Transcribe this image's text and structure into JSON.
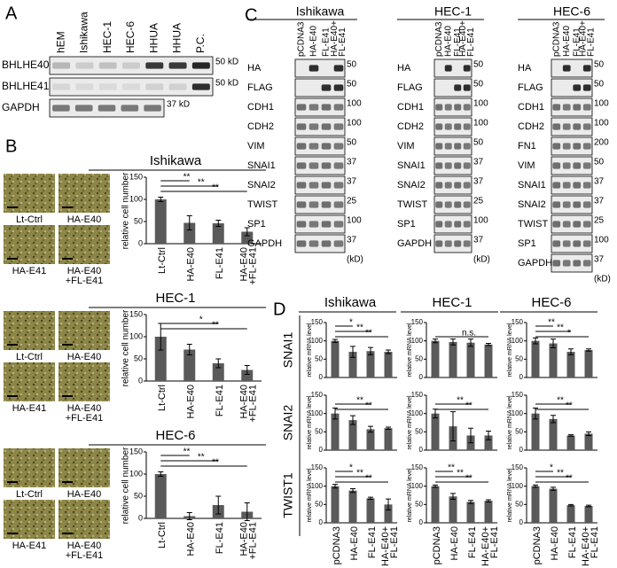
{
  "A": {
    "label": "A",
    "lanes": [
      "hEM",
      "Ishikawa",
      "HEC-1",
      "HEC-6",
      "HHUA",
      "HHUA",
      "P.C."
    ],
    "rows": [
      {
        "name": "BHLHE40",
        "marker": "50 kD"
      },
      {
        "name": "BHLHE41",
        "marker": "50 kD"
      },
      {
        "name": "GAPDH",
        "marker": "37 kD"
      }
    ]
  },
  "B": {
    "label": "B",
    "ylabel": "relative cell number",
    "ylim": [
      0,
      150
    ],
    "yticks": [
      0,
      50,
      100,
      150
    ],
    "categories": [
      "Lt-Ctrl",
      "HA-E40",
      "FL-E41",
      [
        "HA-E40",
        "+FL-E41"
      ]
    ],
    "image_labels": [
      "Lt-Ctrl",
      "HA-E40",
      "HA-E41",
      [
        "HA-E40",
        "+FL-E41"
      ]
    ],
    "panels": [
      {
        "title": "Ishikawa",
        "values": [
          100,
          47,
          46,
          27
        ],
        "errors": [
          5,
          16,
          7,
          9
        ],
        "significance": [
          "**",
          "**",
          "**"
        ]
      },
      {
        "title": "HEC-1",
        "values": [
          100,
          71,
          40,
          25
        ],
        "errors": [
          30,
          12,
          10,
          10
        ],
        "significance": [
          "*",
          "**"
        ]
      },
      {
        "title": "HEC-6",
        "values": [
          100,
          5,
          30,
          15
        ],
        "errors": [
          5,
          8,
          20,
          20
        ],
        "significance": [
          "**",
          "**",
          "**"
        ]
      }
    ]
  },
  "C": {
    "label": "C",
    "lanes": [
      "pCDNA3",
      "HA-E40",
      "FL-E41",
      [
        "HA-E40+",
        "FL-E41"
      ]
    ],
    "unit": "(kD)",
    "panels": [
      {
        "title": "Ishikawa",
        "rows": [
          {
            "name": "HA",
            "marker": "50"
          },
          {
            "name": "FLAG",
            "marker": "50"
          },
          {
            "name": "CDH1",
            "marker": "100"
          },
          {
            "name": "CDH2",
            "marker": "100"
          },
          {
            "name": "VIM",
            "marker": "50"
          },
          {
            "name": "SNAI1",
            "marker": "37"
          },
          {
            "name": "SNAI2",
            "marker": "37"
          },
          {
            "name": "TWIST",
            "marker": "25"
          },
          {
            "name": "SP1",
            "marker": "100"
          },
          {
            "name": "GAPDH",
            "marker": "37"
          }
        ]
      },
      {
        "title": "HEC-1",
        "rows": [
          {
            "name": "HA",
            "marker": "50"
          },
          {
            "name": "FLAG",
            "marker": "50"
          },
          {
            "name": "CDH1",
            "marker": "100"
          },
          {
            "name": "CDH2",
            "marker": "100"
          },
          {
            "name": "VIM",
            "marker": "50"
          },
          {
            "name": "SNAI1",
            "marker": "37"
          },
          {
            "name": "SNAI2",
            "marker": "37"
          },
          {
            "name": "TWIST",
            "marker": "25"
          },
          {
            "name": "SP1",
            "marker": "100"
          },
          {
            "name": "GAPDH",
            "marker": "37"
          }
        ]
      },
      {
        "title": "HEC-6",
        "rows": [
          {
            "name": "HA",
            "marker": "50"
          },
          {
            "name": "FLAG",
            "marker": "50"
          },
          {
            "name": "CDH1",
            "marker": "100"
          },
          {
            "name": "CDH2",
            "marker": "100"
          },
          {
            "name": "FN1",
            "marker": "200"
          },
          {
            "name": "VIM",
            "marker": "50"
          },
          {
            "name": "SNAI1",
            "marker": "37"
          },
          {
            "name": "SNAI2",
            "marker": "37"
          },
          {
            "name": "TWIST",
            "marker": "25"
          },
          {
            "name": "SP1",
            "marker": "100"
          },
          {
            "name": "GAPDH",
            "marker": "37"
          }
        ]
      }
    ]
  },
  "D": {
    "label": "D",
    "ylabel": "relative mRNA level",
    "ylim": [
      0,
      150
    ],
    "yticks": [
      0,
      50,
      100,
      150
    ],
    "categories": [
      "pCDNA3",
      "HA-E40",
      "FL-E41",
      [
        "HA-E40+",
        "FL-E41"
      ]
    ],
    "columns": [
      "Ishikawa",
      "HEC-1",
      "HEC-6"
    ],
    "rows": [
      {
        "gene": "SNAI1",
        "charts": [
          {
            "values": [
              100,
              70,
              72,
              70
            ],
            "errors": [
              4,
              15,
              10,
              5
            ],
            "significance": [
              "*",
              "**",
              "**"
            ]
          },
          {
            "values": [
              100,
              97,
              95,
              90
            ],
            "errors": [
              5,
              8,
              10,
              3
            ],
            "significance": [
              "n.s."
            ]
          },
          {
            "values": [
              100,
              93,
              70,
              75
            ],
            "errors": [
              8,
              12,
              8,
              3
            ],
            "significance": [
              "**",
              "**",
              "*"
            ]
          }
        ]
      },
      {
        "gene": "SNAI2",
        "charts": [
          {
            "values": [
              100,
              82,
              57,
              60
            ],
            "errors": [
              15,
              12,
              8,
              3
            ],
            "significance": [
              "**",
              "**"
            ]
          },
          {
            "values": [
              100,
              65,
              40,
              40
            ],
            "errors": [
              12,
              40,
              20,
              12
            ],
            "significance": [
              "**",
              "**"
            ]
          },
          {
            "values": [
              100,
              85,
              40,
              45
            ],
            "errors": [
              15,
              10,
              2,
              5
            ],
            "significance": [
              "**",
              "**"
            ]
          }
        ]
      },
      {
        "gene": "TWIST1",
        "charts": [
          {
            "values": [
              100,
              88,
              67,
              50
            ],
            "errors": [
              5,
              5,
              3,
              15
            ],
            "significance": [
              "*",
              "**",
              "**"
            ]
          },
          {
            "values": [
              100,
              72,
              57,
              60
            ],
            "errors": [
              3,
              8,
              4,
              3
            ],
            "significance": [
              "**",
              "**",
              "**"
            ]
          },
          {
            "values": [
              100,
              93,
              48,
              46
            ],
            "errors": [
              3,
              4,
              2,
              2
            ],
            "significance": [
              "*",
              "**",
              "**"
            ]
          }
        ]
      }
    ]
  }
}
